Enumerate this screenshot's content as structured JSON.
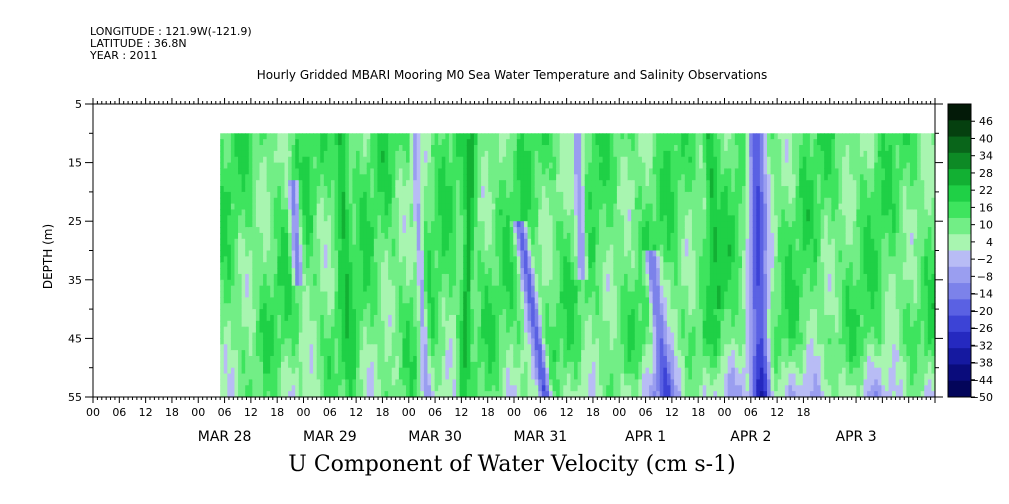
{
  "header": {
    "longitude": "LONGITUDE : 121.9W(-121.9)",
    "latitude": "LATITUDE : 36.8N",
    "year": "YEAR : 2011"
  },
  "chart_data": {
    "type": "heatmap",
    "title": "Hourly Gridded MBARI Mooring M0 Sea Water Temperature and Salinity Observations",
    "variable_title": "U Component of Water Velocity (cm s-1)",
    "ylabel": "DEPTH (m)",
    "ylim": [
      5,
      55
    ],
    "y_inverted": true,
    "y_ticks": [
      5,
      15,
      25,
      35,
      45,
      55
    ],
    "x_time_range": [
      "2011-03-27 00:00",
      "2011-04-03 23:00"
    ],
    "data_time_range": [
      "2011-03-28 05:00",
      "2011-04-03 23:00"
    ],
    "data_depth_range": [
      10,
      55
    ],
    "x_hour_ticks": [
      "00",
      "06",
      "12",
      "18",
      "00",
      "06",
      "12",
      "18",
      "00",
      "06",
      "12",
      "18",
      "00",
      "06",
      "12",
      "18",
      "00",
      "06",
      "12",
      "18",
      "00",
      "06",
      "12",
      "18",
      "00",
      "06",
      "12",
      "18"
    ],
    "x_day_labels": [
      "MAR 28",
      "MAR 29",
      "MAR 30",
      "MAR 31",
      "APR 1",
      "APR 2",
      "APR 3"
    ],
    "colorbar": {
      "levels": [
        46,
        40,
        34,
        28,
        22,
        16,
        10,
        4,
        -2,
        -8,
        -14,
        -20,
        -26,
        -32,
        -38,
        -44,
        -50
      ],
      "range": [
        -50,
        52
      ],
      "colors": [
        "#031a08",
        "#05400f",
        "#09651a",
        "#0d8a25",
        "#12b033",
        "#1fd046",
        "#3ee45e",
        "#72ee86",
        "#a8f5b0",
        "#b8bcf5",
        "#9a9ef0",
        "#7c82ea",
        "#5a61e3",
        "#3c43d6",
        "#2529c0",
        "#1519a0",
        "#0a0c7c",
        "#03055a"
      ]
    },
    "features": [
      {
        "day": 0.75,
        "start_depth": 10,
        "end_depth": 55,
        "drift": 0.15,
        "width": 0.04,
        "value": -14
      },
      {
        "day": 1.15,
        "start_depth": 10,
        "end_depth": 55,
        "drift": -0.05,
        "width": 0.05,
        "value": 30
      },
      {
        "day": 1.9,
        "start_depth": 18,
        "end_depth": 36,
        "drift": 0.05,
        "width": 0.05,
        "value": -12
      },
      {
        "day": 2.35,
        "start_depth": 10,
        "end_depth": 55,
        "drift": 0.1,
        "width": 0.06,
        "value": 24
      },
      {
        "day": 3.05,
        "start_depth": 10,
        "end_depth": 55,
        "drift": 0.12,
        "width": 0.04,
        "value": -6
      },
      {
        "day": 3.6,
        "start_depth": 10,
        "end_depth": 55,
        "drift": -0.08,
        "width": 0.05,
        "value": 26
      },
      {
        "day": 4.05,
        "start_depth": 25,
        "end_depth": 55,
        "drift": 0.25,
        "width": 0.06,
        "value": -18
      },
      {
        "day": 4.6,
        "start_depth": 10,
        "end_depth": 35,
        "drift": 0.05,
        "width": 0.05,
        "value": -10
      },
      {
        "day": 5.3,
        "start_depth": 30,
        "end_depth": 55,
        "drift": 0.15,
        "width": 0.07,
        "value": -16
      },
      {
        "day": 5.85,
        "start_depth": 10,
        "end_depth": 40,
        "drift": 0.1,
        "width": 0.06,
        "value": 24
      },
      {
        "day": 6.3,
        "start_depth": 10,
        "end_depth": 55,
        "drift": 0.05,
        "width": 0.09,
        "value": -22
      }
    ]
  }
}
